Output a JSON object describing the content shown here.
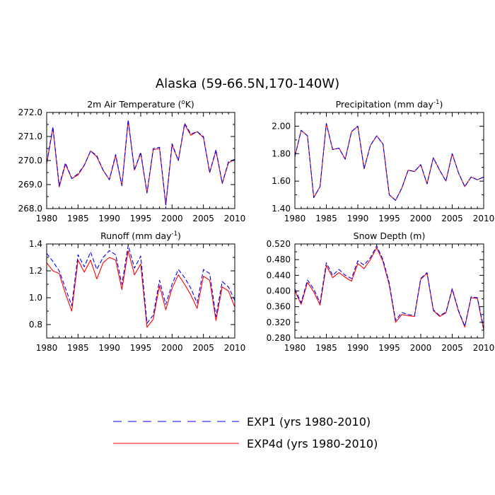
{
  "title": "Alaska (59-66.5N,170-140W)",
  "colors": {
    "exp1": "#0000ff",
    "exp4d": "#ff0000",
    "axis": "#000000"
  },
  "legend": [
    {
      "series": "EXP1",
      "label": "EXP1 (yrs 1980-2010)",
      "style": "dashed"
    },
    {
      "series": "EXP4d",
      "label": "EXP4d (yrs 1980-2010)",
      "style": "solid"
    }
  ],
  "chart_data": [
    {
      "id": "temp",
      "type": "line",
      "title": "2m Air Temperature (°K)",
      "title_parts": {
        "before": "2m Air Temperature (",
        "sup": "o",
        "after": "K)"
      },
      "xlim": [
        1980,
        2010
      ],
      "xticks": [
        1980,
        1985,
        1990,
        1995,
        2000,
        2005,
        2010
      ],
      "ylim": [
        268.0,
        272.0
      ],
      "yticks": [
        268.0,
        269.0,
        270.0,
        271.0,
        272.0
      ],
      "ytick_labels": [
        "268.0",
        "269.0",
        "270.0",
        "271.0",
        "272.0"
      ],
      "x": [
        1980,
        1981,
        1982,
        1983,
        1984,
        1985,
        1986,
        1987,
        1988,
        1989,
        1990,
        1991,
        1992,
        1993,
        1994,
        1995,
        1996,
        1997,
        1998,
        1999,
        2000,
        2001,
        2002,
        2003,
        2004,
        2005,
        2006,
        2007,
        2008,
        2009,
        2010
      ],
      "series": [
        {
          "name": "EXP1",
          "values": [
            269.9,
            271.4,
            268.95,
            269.9,
            269.25,
            269.45,
            269.8,
            270.4,
            270.2,
            269.6,
            269.2,
            270.25,
            268.95,
            271.7,
            269.6,
            270.35,
            268.65,
            270.5,
            270.55,
            268.15,
            270.7,
            270.0,
            271.55,
            271.1,
            271.2,
            271.0,
            269.5,
            270.45,
            269.05,
            269.95,
            270.05
          ]
        },
        {
          "name": "EXP4d",
          "values": [
            269.85,
            271.35,
            268.9,
            269.85,
            269.25,
            269.4,
            269.8,
            270.4,
            270.15,
            269.6,
            269.2,
            270.2,
            268.95,
            271.65,
            269.6,
            270.3,
            268.65,
            270.45,
            270.5,
            268.15,
            270.65,
            270.0,
            271.5,
            271.05,
            271.2,
            270.95,
            269.5,
            270.4,
            269.05,
            269.9,
            270.05
          ]
        }
      ]
    },
    {
      "id": "precip",
      "type": "line",
      "title": "Precipitation (mm day-1)",
      "title_parts": {
        "before": "Precipitation (mm day",
        "sup": "-1",
        "after": ")"
      },
      "xlim": [
        1980,
        2010
      ],
      "xticks": [
        1980,
        1985,
        1990,
        1995,
        2000,
        2005,
        2010
      ],
      "ylim": [
        1.4,
        2.1
      ],
      "yticks": [
        1.4,
        1.6,
        1.8,
        2.0
      ],
      "ytick_labels": [
        "1.40",
        "1.60",
        "1.80",
        "2.00"
      ],
      "x": [
        1980,
        1981,
        1982,
        1983,
        1984,
        1985,
        1986,
        1987,
        1988,
        1989,
        1990,
        1991,
        1992,
        1993,
        1994,
        1995,
        1996,
        1997,
        1998,
        1999,
        2000,
        2001,
        2002,
        2003,
        2004,
        2005,
        2006,
        2007,
        2008,
        2009,
        2010
      ],
      "series": [
        {
          "name": "EXP1",
          "values": [
            1.78,
            1.97,
            1.93,
            1.48,
            1.56,
            2.02,
            1.83,
            1.84,
            1.76,
            1.96,
            2.0,
            1.69,
            1.86,
            1.93,
            1.87,
            1.5,
            1.46,
            1.55,
            1.68,
            1.67,
            1.72,
            1.58,
            1.77,
            1.68,
            1.6,
            1.8,
            1.66,
            1.56,
            1.63,
            1.61,
            1.63
          ]
        },
        {
          "name": "EXP4d",
          "values": [
            1.78,
            1.97,
            1.93,
            1.48,
            1.56,
            2.02,
            1.83,
            1.84,
            1.76,
            1.96,
            2.0,
            1.69,
            1.86,
            1.93,
            1.87,
            1.5,
            1.46,
            1.55,
            1.68,
            1.67,
            1.72,
            1.58,
            1.77,
            1.68,
            1.6,
            1.8,
            1.66,
            1.56,
            1.63,
            1.61,
            1.63
          ]
        }
      ]
    },
    {
      "id": "runoff",
      "type": "line",
      "title": "Runoff (mm day-1)",
      "title_parts": {
        "before": "Runoff (mm day",
        "sup": "-1",
        "after": ")"
      },
      "xlim": [
        1980,
        2010
      ],
      "xticks": [
        1980,
        1985,
        1990,
        1995,
        2000,
        2005,
        2010
      ],
      "ylim": [
        0.7,
        1.4
      ],
      "yticks": [
        0.8,
        1.0,
        1.2,
        1.4
      ],
      "ytick_labels": [
        "0.8",
        "1.0",
        "1.2",
        "1.4"
      ],
      "x": [
        1980,
        1981,
        1982,
        1983,
        1984,
        1985,
        1986,
        1987,
        1988,
        1989,
        1990,
        1991,
        1992,
        1993,
        1994,
        1995,
        1996,
        1997,
        1998,
        1999,
        2000,
        2001,
        2002,
        2003,
        2004,
        2005,
        2006,
        2007,
        2008,
        2009,
        2010
      ],
      "series": [
        {
          "name": "EXP1",
          "values": [
            1.33,
            1.27,
            1.2,
            1.07,
            0.94,
            1.32,
            1.23,
            1.34,
            1.21,
            1.3,
            1.35,
            1.32,
            1.1,
            1.39,
            1.22,
            1.31,
            0.81,
            0.87,
            1.13,
            0.95,
            1.1,
            1.21,
            1.15,
            1.07,
            0.96,
            1.21,
            1.18,
            0.86,
            1.12,
            1.08,
            0.98
          ]
        },
        {
          "name": "EXP4d",
          "values": [
            1.26,
            1.2,
            1.18,
            1.03,
            0.9,
            1.28,
            1.19,
            1.28,
            1.14,
            1.26,
            1.3,
            1.28,
            1.06,
            1.35,
            1.17,
            1.25,
            0.78,
            0.84,
            1.09,
            0.91,
            1.07,
            1.17,
            1.1,
            1.02,
            0.92,
            1.16,
            1.13,
            0.83,
            1.08,
            1.05,
            0.93
          ]
        }
      ]
    },
    {
      "id": "snow",
      "type": "line",
      "title": "Snow Depth (m)",
      "title_parts": {
        "before": "Snow Depth (m)",
        "sup": "",
        "after": ""
      },
      "xlim": [
        1980,
        2010
      ],
      "xticks": [
        1980,
        1985,
        1990,
        1995,
        2000,
        2005,
        2010
      ],
      "ylim": [
        0.28,
        0.52
      ],
      "yticks": [
        0.28,
        0.32,
        0.36,
        0.4,
        0.44,
        0.48,
        0.52
      ],
      "ytick_labels": [
        "0.280",
        "0.320",
        "0.360",
        "0.400",
        "0.440",
        "0.480",
        "0.520"
      ],
      "x": [
        1980,
        1981,
        1982,
        1983,
        1984,
        1985,
        1986,
        1987,
        1988,
        1989,
        1990,
        1991,
        1992,
        1993,
        1994,
        1995,
        1996,
        1997,
        1998,
        1999,
        2000,
        2001,
        2002,
        2003,
        2004,
        2005,
        2006,
        2007,
        2008,
        2009,
        2010
      ],
      "series": [
        {
          "name": "EXP1",
          "values": [
            0.405,
            0.37,
            0.428,
            0.405,
            0.37,
            0.472,
            0.44,
            0.455,
            0.44,
            0.432,
            0.477,
            0.466,
            0.485,
            0.515,
            0.48,
            0.42,
            0.325,
            0.345,
            0.34,
            0.337,
            0.432,
            0.447,
            0.352,
            0.337,
            0.346,
            0.406,
            0.35,
            0.31,
            0.385,
            0.383,
            0.305
          ]
        },
        {
          "name": "EXP4d",
          "values": [
            0.4,
            0.366,
            0.422,
            0.398,
            0.364,
            0.465,
            0.434,
            0.447,
            0.435,
            0.425,
            0.47,
            0.457,
            0.48,
            0.51,
            0.475,
            0.415,
            0.32,
            0.34,
            0.337,
            0.335,
            0.43,
            0.445,
            0.35,
            0.335,
            0.344,
            0.404,
            0.348,
            0.308,
            0.383,
            0.381,
            0.3
          ]
        }
      ]
    }
  ]
}
